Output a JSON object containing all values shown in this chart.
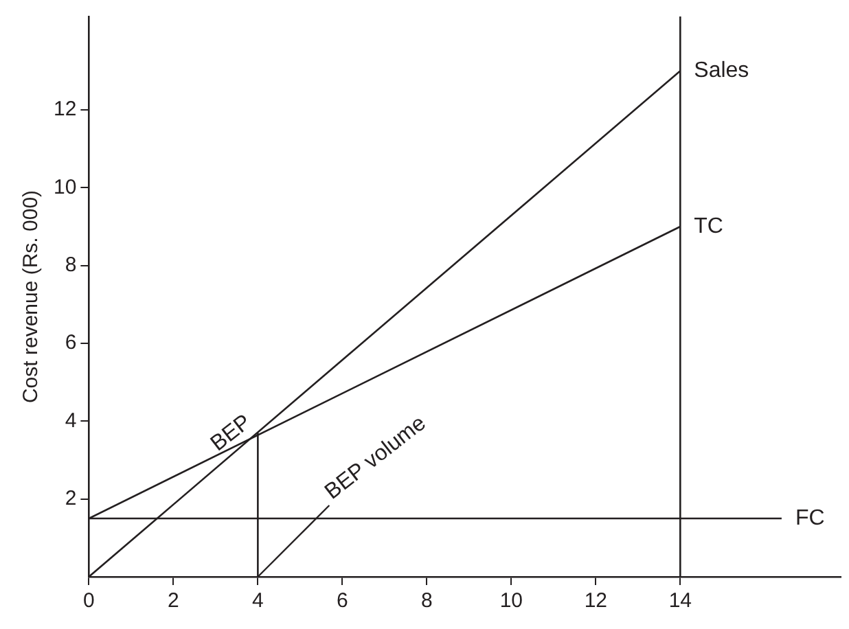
{
  "chart_data": {
    "type": "line",
    "ylabel": "Cost revenue (Rs. 000)",
    "xlim": [
      0,
      17.8
    ],
    "ylim": [
      0,
      14.4
    ],
    "xticks": [
      0,
      2,
      4,
      6,
      8,
      10,
      12,
      14
    ],
    "yticks": [
      2,
      4,
      6,
      8,
      10,
      12
    ],
    "grid": false,
    "legend": false,
    "marker": "none",
    "line_style": "solid",
    "series": [
      {
        "name": "Sales",
        "color": "#231f20",
        "x": [
          0,
          14
        ],
        "values": [
          0,
          13
        ]
      },
      {
        "name": "TC",
        "color": "#231f20",
        "x": [
          0,
          14
        ],
        "values": [
          1.5,
          9
        ]
      },
      {
        "name": "FC",
        "color": "#231f20",
        "x": [
          0,
          16.4
        ],
        "values": [
          1.5,
          1.5
        ]
      },
      {
        "color": "#231f20",
        "x": [
          4,
          4
        ],
        "values": [
          0,
          3.7
        ]
      }
    ],
    "ref_lines": [
      {
        "axis": "x",
        "value": 14,
        "color": "#231f20"
      }
    ],
    "annotations": [
      {
        "text": "BEP",
        "x": 4,
        "y": 3.7
      },
      {
        "text": "BEP volume",
        "x": 4,
        "y": 0
      }
    ]
  }
}
